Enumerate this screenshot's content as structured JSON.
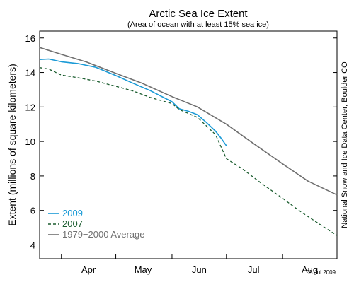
{
  "chart_data": {
    "type": "line",
    "title": "Arctic Sea Ice Extent",
    "subtitle": "(Area of ocean with at least 15% sea ice)",
    "ylabel": "Extent (millions of square kilometers)",
    "xlabel": "",
    "ylim": [
      3.2,
      16.4
    ],
    "xlim": [
      "Mar 20",
      "Aug 31"
    ],
    "yticks": [
      4,
      6,
      8,
      10,
      12,
      14,
      16
    ],
    "categories": [
      "Apr",
      "May",
      "Jun",
      "Jul",
      "Aug"
    ],
    "grid": false,
    "legend_position": "bottom-left",
    "credit": "National Snow and Ice Data Center, Boulder CO",
    "date_stamp": "05 Jul 2009",
    "series": [
      {
        "name": "2009",
        "color": "#1a9ad6",
        "style": "solid",
        "points": [
          [
            "Mar 20",
            14.75
          ],
          [
            "Mar 25",
            14.78
          ],
          [
            "Apr 1",
            14.62
          ],
          [
            "Apr 10",
            14.52
          ],
          [
            "Apr 20",
            14.3
          ],
          [
            "May 1",
            13.82
          ],
          [
            "May 10",
            13.4
          ],
          [
            "May 20",
            12.95
          ],
          [
            "Jun 1",
            12.3
          ],
          [
            "Jun 5",
            11.9
          ],
          [
            "Jun 10",
            11.75
          ],
          [
            "Jun 15",
            11.55
          ],
          [
            "Jun 20",
            11.1
          ],
          [
            "Jun 25",
            10.6
          ],
          [
            "Jun 28",
            10.2
          ],
          [
            "Jul 1",
            9.75
          ]
        ]
      },
      {
        "name": "2007",
        "color": "#1a5c2e",
        "style": "dashed",
        "points": [
          [
            "Mar 20",
            14.28
          ],
          [
            "Mar 25",
            14.2
          ],
          [
            "Apr 1",
            13.85
          ],
          [
            "Apr 10",
            13.7
          ],
          [
            "Apr 20",
            13.5
          ],
          [
            "May 1",
            13.2
          ],
          [
            "May 10",
            12.95
          ],
          [
            "May 20",
            12.55
          ],
          [
            "Jun 1",
            12.2
          ],
          [
            "Jun 5",
            11.85
          ],
          [
            "Jun 15",
            11.4
          ],
          [
            "Jun 25",
            10.4
          ],
          [
            "Jul 1",
            9.0
          ],
          [
            "Jul 10",
            8.4
          ],
          [
            "Jul 20",
            7.6
          ],
          [
            "Aug 1",
            6.7
          ],
          [
            "Aug 10",
            6.0
          ],
          [
            "Aug 20",
            5.3
          ],
          [
            "Aug 31",
            4.55
          ]
        ]
      },
      {
        "name": "1979−2000 Average",
        "color": "#707070",
        "style": "solid",
        "points": [
          [
            "Mar 20",
            15.45
          ],
          [
            "Apr 1",
            15.05
          ],
          [
            "Apr 15",
            14.6
          ],
          [
            "May 1",
            13.95
          ],
          [
            "May 15",
            13.4
          ],
          [
            "Jun 1",
            12.6
          ],
          [
            "Jun 15",
            12.0
          ],
          [
            "Jul 1",
            11.0
          ],
          [
            "Jul 15",
            9.95
          ],
          [
            "Aug 1",
            8.7
          ],
          [
            "Aug 15",
            7.7
          ],
          [
            "Aug 31",
            6.9
          ]
        ]
      }
    ]
  }
}
